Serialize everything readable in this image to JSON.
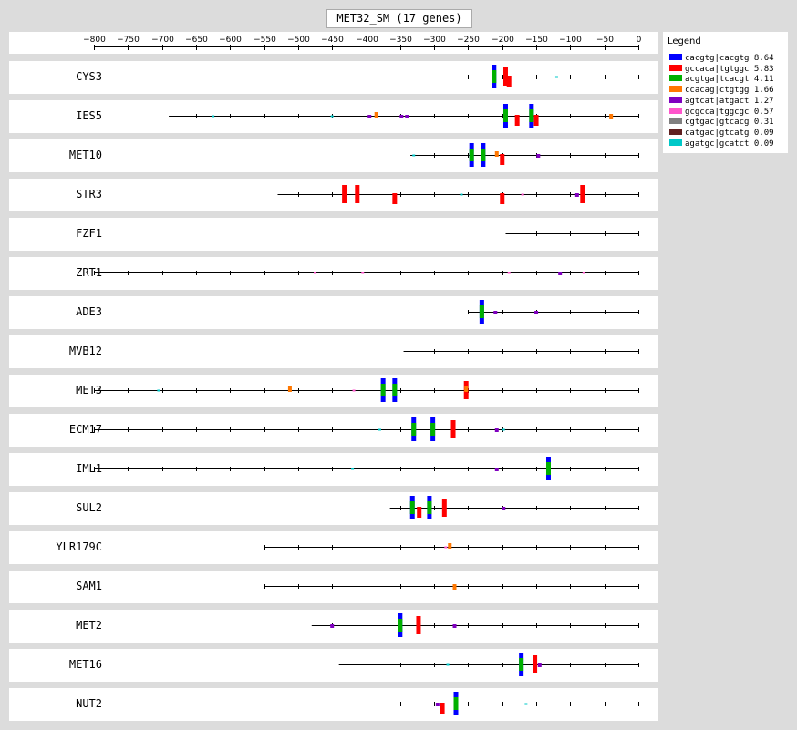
{
  "title": "MET32_SM (17 genes)",
  "axis": {
    "min": -800,
    "max": 0,
    "ticks": [
      -800,
      -750,
      -700,
      -650,
      -600,
      -550,
      -500,
      -450,
      -400,
      -350,
      -300,
      -250,
      -200,
      -150,
      -100,
      -50,
      0
    ],
    "tick_labels": [
      "−800",
      "−750",
      "−700",
      "−650",
      "−600",
      "−550",
      "−500",
      "−450",
      "−400",
      "−350",
      "−300",
      "−250",
      "−200",
      "−150",
      "−100",
      "−50",
      "0"
    ]
  },
  "legend": {
    "title": "Legend",
    "items": [
      {
        "label": "cacgtg|cacgtg 8.64",
        "color": "#0000ff"
      },
      {
        "label": "gccaca|tgtggc 5.83",
        "color": "#ff0000"
      },
      {
        "label": "acgtga|tcacgt 4.11",
        "color": "#00b000"
      },
      {
        "label": "ccacag|ctgtgg 1.66",
        "color": "#ff7700"
      },
      {
        "label": "agtcat|atgact 1.27",
        "color": "#8000c0"
      },
      {
        "label": "gcgcca|tggcgc 0.57",
        "color": "#ff55cc"
      },
      {
        "label": "cgtgac|gtcacg 0.31",
        "color": "#808080"
      },
      {
        "label": "catgac|gtcatg 0.09",
        "color": "#602020"
      },
      {
        "label": "agatgc|gcatct 0.09",
        "color": "#00c8c8"
      }
    ]
  },
  "genes": [
    {
      "name": "CYS3",
      "start": -265,
      "sites": [
        {
          "pos": -212,
          "m": 0,
          "s": 1
        },
        {
          "pos": -212,
          "m": 2,
          "s": 1
        },
        {
          "pos": -195,
          "m": 1,
          "s": 1
        },
        {
          "pos": -190,
          "m": 1,
          "s": -1
        },
        {
          "pos": -120,
          "m": 8,
          "s": 1
        }
      ]
    },
    {
      "name": "IES5",
      "start": -690,
      "sites": [
        {
          "pos": -625,
          "m": 8,
          "s": 1
        },
        {
          "pos": -450,
          "m": 8,
          "s": 1
        },
        {
          "pos": -395,
          "m": 4,
          "s": 1
        },
        {
          "pos": -385,
          "m": 3,
          "s": 1
        },
        {
          "pos": -348,
          "m": 4,
          "s": 1
        },
        {
          "pos": -340,
          "m": 4,
          "s": 1
        },
        {
          "pos": -195,
          "m": 0,
          "s": 1
        },
        {
          "pos": -195,
          "m": 2,
          "s": 1
        },
        {
          "pos": -178,
          "m": 1,
          "s": -1
        },
        {
          "pos": -157,
          "m": 0,
          "s": 1
        },
        {
          "pos": -157,
          "m": 2,
          "s": 1
        },
        {
          "pos": -150,
          "m": 1,
          "s": -1
        },
        {
          "pos": -40,
          "m": 3,
          "s": -1
        }
      ]
    },
    {
      "name": "MET10",
      "start": -335,
      "sites": [
        {
          "pos": -330,
          "m": 8,
          "s": 1
        },
        {
          "pos": -245,
          "m": 0,
          "s": 1
        },
        {
          "pos": -245,
          "m": 2,
          "s": 1
        },
        {
          "pos": -228,
          "m": 0,
          "s": 1
        },
        {
          "pos": -228,
          "m": 2,
          "s": 1
        },
        {
          "pos": -208,
          "m": 3,
          "s": 1
        },
        {
          "pos": -200,
          "m": 1,
          "s": -1
        },
        {
          "pos": -147,
          "m": 4,
          "s": 1
        }
      ]
    },
    {
      "name": "STR3",
      "start": -530,
      "sites": [
        {
          "pos": -432,
          "m": 1,
          "s": 1
        },
        {
          "pos": -413,
          "m": 1,
          "s": 1
        },
        {
          "pos": -358,
          "m": 1,
          "s": -1
        },
        {
          "pos": -260,
          "m": 8,
          "s": 1
        },
        {
          "pos": -200,
          "m": 1,
          "s": -1
        },
        {
          "pos": -170,
          "m": 5,
          "s": 1
        },
        {
          "pos": -90,
          "m": 4,
          "s": 1
        },
        {
          "pos": -82,
          "m": 1,
          "s": 1
        }
      ]
    },
    {
      "name": "FZF1",
      "start": -195,
      "sites": []
    },
    {
      "name": "ZRT1",
      "start": -800,
      "sites": [
        {
          "pos": -475,
          "m": 5,
          "s": 1
        },
        {
          "pos": -405,
          "m": 5,
          "s": 1
        },
        {
          "pos": -190,
          "m": 5,
          "s": 1
        },
        {
          "pos": -115,
          "m": 4,
          "s": 1
        },
        {
          "pos": -80,
          "m": 5,
          "s": 1
        }
      ]
    },
    {
      "name": "ADE3",
      "start": -250,
      "sites": [
        {
          "pos": -230,
          "m": 0,
          "s": 1
        },
        {
          "pos": -230,
          "m": 2,
          "s": 1
        },
        {
          "pos": -210,
          "m": 4,
          "s": 1
        },
        {
          "pos": -150,
          "m": 4,
          "s": 1
        }
      ]
    },
    {
      "name": "MVB12",
      "start": -345,
      "sites": []
    },
    {
      "name": "MET3",
      "start": -800,
      "sites": [
        {
          "pos": -705,
          "m": 8,
          "s": 1
        },
        {
          "pos": -512,
          "m": 3,
          "s": 1
        },
        {
          "pos": -418,
          "m": 5,
          "s": 1
        },
        {
          "pos": -375,
          "m": 0,
          "s": 1
        },
        {
          "pos": -375,
          "m": 2,
          "s": 1
        },
        {
          "pos": -358,
          "m": 0,
          "s": 1
        },
        {
          "pos": -358,
          "m": 2,
          "s": 1
        },
        {
          "pos": -253,
          "m": 1,
          "s": 1
        },
        {
          "pos": -253,
          "m": 3,
          "s": 1
        }
      ]
    },
    {
      "name": "ECM17",
      "start": -800,
      "sites": [
        {
          "pos": -380,
          "m": 8,
          "s": 1
        },
        {
          "pos": -330,
          "m": 0,
          "s": 1
        },
        {
          "pos": -330,
          "m": 2,
          "s": 1
        },
        {
          "pos": -302,
          "m": 0,
          "s": 1
        },
        {
          "pos": -302,
          "m": 2,
          "s": 1
        },
        {
          "pos": -272,
          "m": 1,
          "s": 1
        },
        {
          "pos": -208,
          "m": 4,
          "s": 1
        },
        {
          "pos": -198,
          "m": 8,
          "s": 1
        }
      ]
    },
    {
      "name": "IML1",
      "start": -800,
      "sites": [
        {
          "pos": -420,
          "m": 8,
          "s": 1
        },
        {
          "pos": -208,
          "m": 4,
          "s": 1
        },
        {
          "pos": -132,
          "m": 0,
          "s": 1
        },
        {
          "pos": -132,
          "m": 2,
          "s": 1
        }
      ]
    },
    {
      "name": "SUL2",
      "start": -365,
      "sites": [
        {
          "pos": -332,
          "m": 0,
          "s": 1
        },
        {
          "pos": -332,
          "m": 2,
          "s": 1
        },
        {
          "pos": -322,
          "m": 1,
          "s": -1
        },
        {
          "pos": -307,
          "m": 0,
          "s": 1
        },
        {
          "pos": -307,
          "m": 2,
          "s": 1
        },
        {
          "pos": -285,
          "m": 1,
          "s": 1
        },
        {
          "pos": -198,
          "m": 4,
          "s": 1
        }
      ]
    },
    {
      "name": "YLR179C",
      "start": -550,
      "sites": [
        {
          "pos": -283,
          "m": 5,
          "s": 1
        },
        {
          "pos": -277,
          "m": 3,
          "s": 1
        }
      ]
    },
    {
      "name": "SAM1",
      "start": -550,
      "sites": [
        {
          "pos": -270,
          "m": 3,
          "s": -1
        }
      ]
    },
    {
      "name": "MET2",
      "start": -480,
      "sites": [
        {
          "pos": -450,
          "m": 4,
          "s": 1
        },
        {
          "pos": -350,
          "m": 0,
          "s": 1
        },
        {
          "pos": -350,
          "m": 2,
          "s": 1
        },
        {
          "pos": -323,
          "m": 1,
          "s": 1
        },
        {
          "pos": -270,
          "m": 4,
          "s": 1
        }
      ]
    },
    {
      "name": "MET16",
      "start": -440,
      "sites": [
        {
          "pos": -280,
          "m": 8,
          "s": 1
        },
        {
          "pos": -172,
          "m": 0,
          "s": 1
        },
        {
          "pos": -172,
          "m": 2,
          "s": 1
        },
        {
          "pos": -152,
          "m": 1,
          "s": 1
        },
        {
          "pos": -145,
          "m": 4,
          "s": 1
        }
      ]
    },
    {
      "name": "NUT2",
      "start": -440,
      "sites": [
        {
          "pos": -295,
          "m": 4,
          "s": 1
        },
        {
          "pos": -288,
          "m": 1,
          "s": -1
        },
        {
          "pos": -268,
          "m": 0,
          "s": 1
        },
        {
          "pos": -268,
          "m": 2,
          "s": 1
        },
        {
          "pos": -165,
          "m": 8,
          "s": 1
        }
      ]
    }
  ]
}
